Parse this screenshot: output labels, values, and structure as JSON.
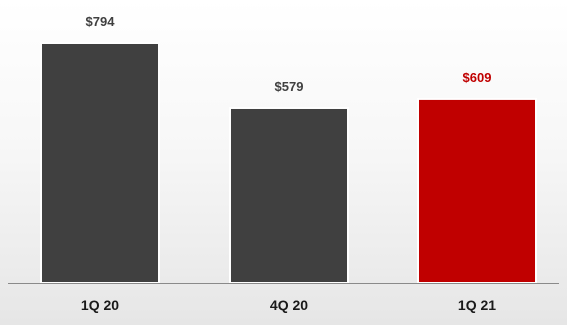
{
  "chart_data": {
    "type": "bar",
    "title": "",
    "xlabel": "",
    "ylabel": "",
    "categories": [
      "1Q 20",
      "4Q 20",
      "1Q 21"
    ],
    "values": [
      794,
      579,
      609
    ],
    "data_labels": [
      "$794",
      "$579",
      "$609"
    ],
    "ylim": [
      0,
      794
    ],
    "grid": false,
    "legend": "none",
    "colors": [
      "#404040",
      "#404040",
      "#c00000"
    ],
    "label_colors": [
      "#404040",
      "#404040",
      "#c00000"
    ]
  }
}
